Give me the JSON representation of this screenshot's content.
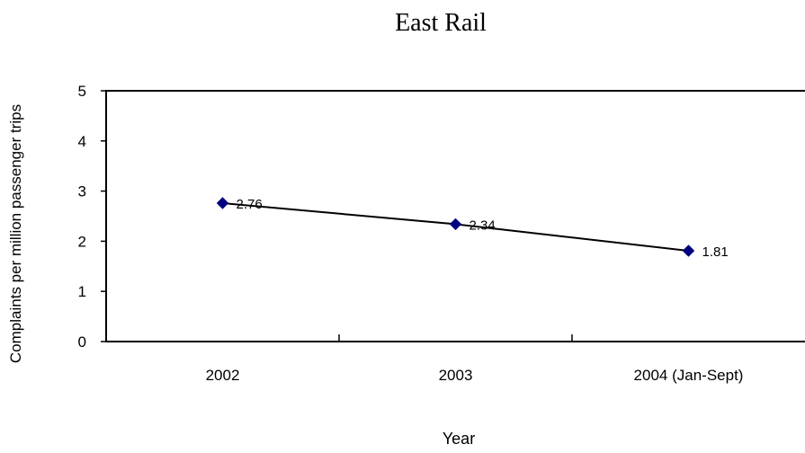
{
  "chart_data": {
    "type": "line",
    "title": "East Rail",
    "xlabel": "Year",
    "ylabel": "Complaints per million passenger trips",
    "categories": [
      "2002",
      "2003",
      "2004 (Jan-Sept)"
    ],
    "series": [
      {
        "values": [
          2.76,
          2.34,
          1.81
        ],
        "data_labels": [
          "2.76",
          "2.34",
          "1.81"
        ]
      }
    ],
    "ylim": [
      0,
      5
    ],
    "yticks": [
      "0",
      "1",
      "2",
      "3",
      "4",
      "5"
    ],
    "grid": false,
    "legend": "none",
    "colors": {
      "marker": "#000080",
      "line": "#000000"
    }
  }
}
